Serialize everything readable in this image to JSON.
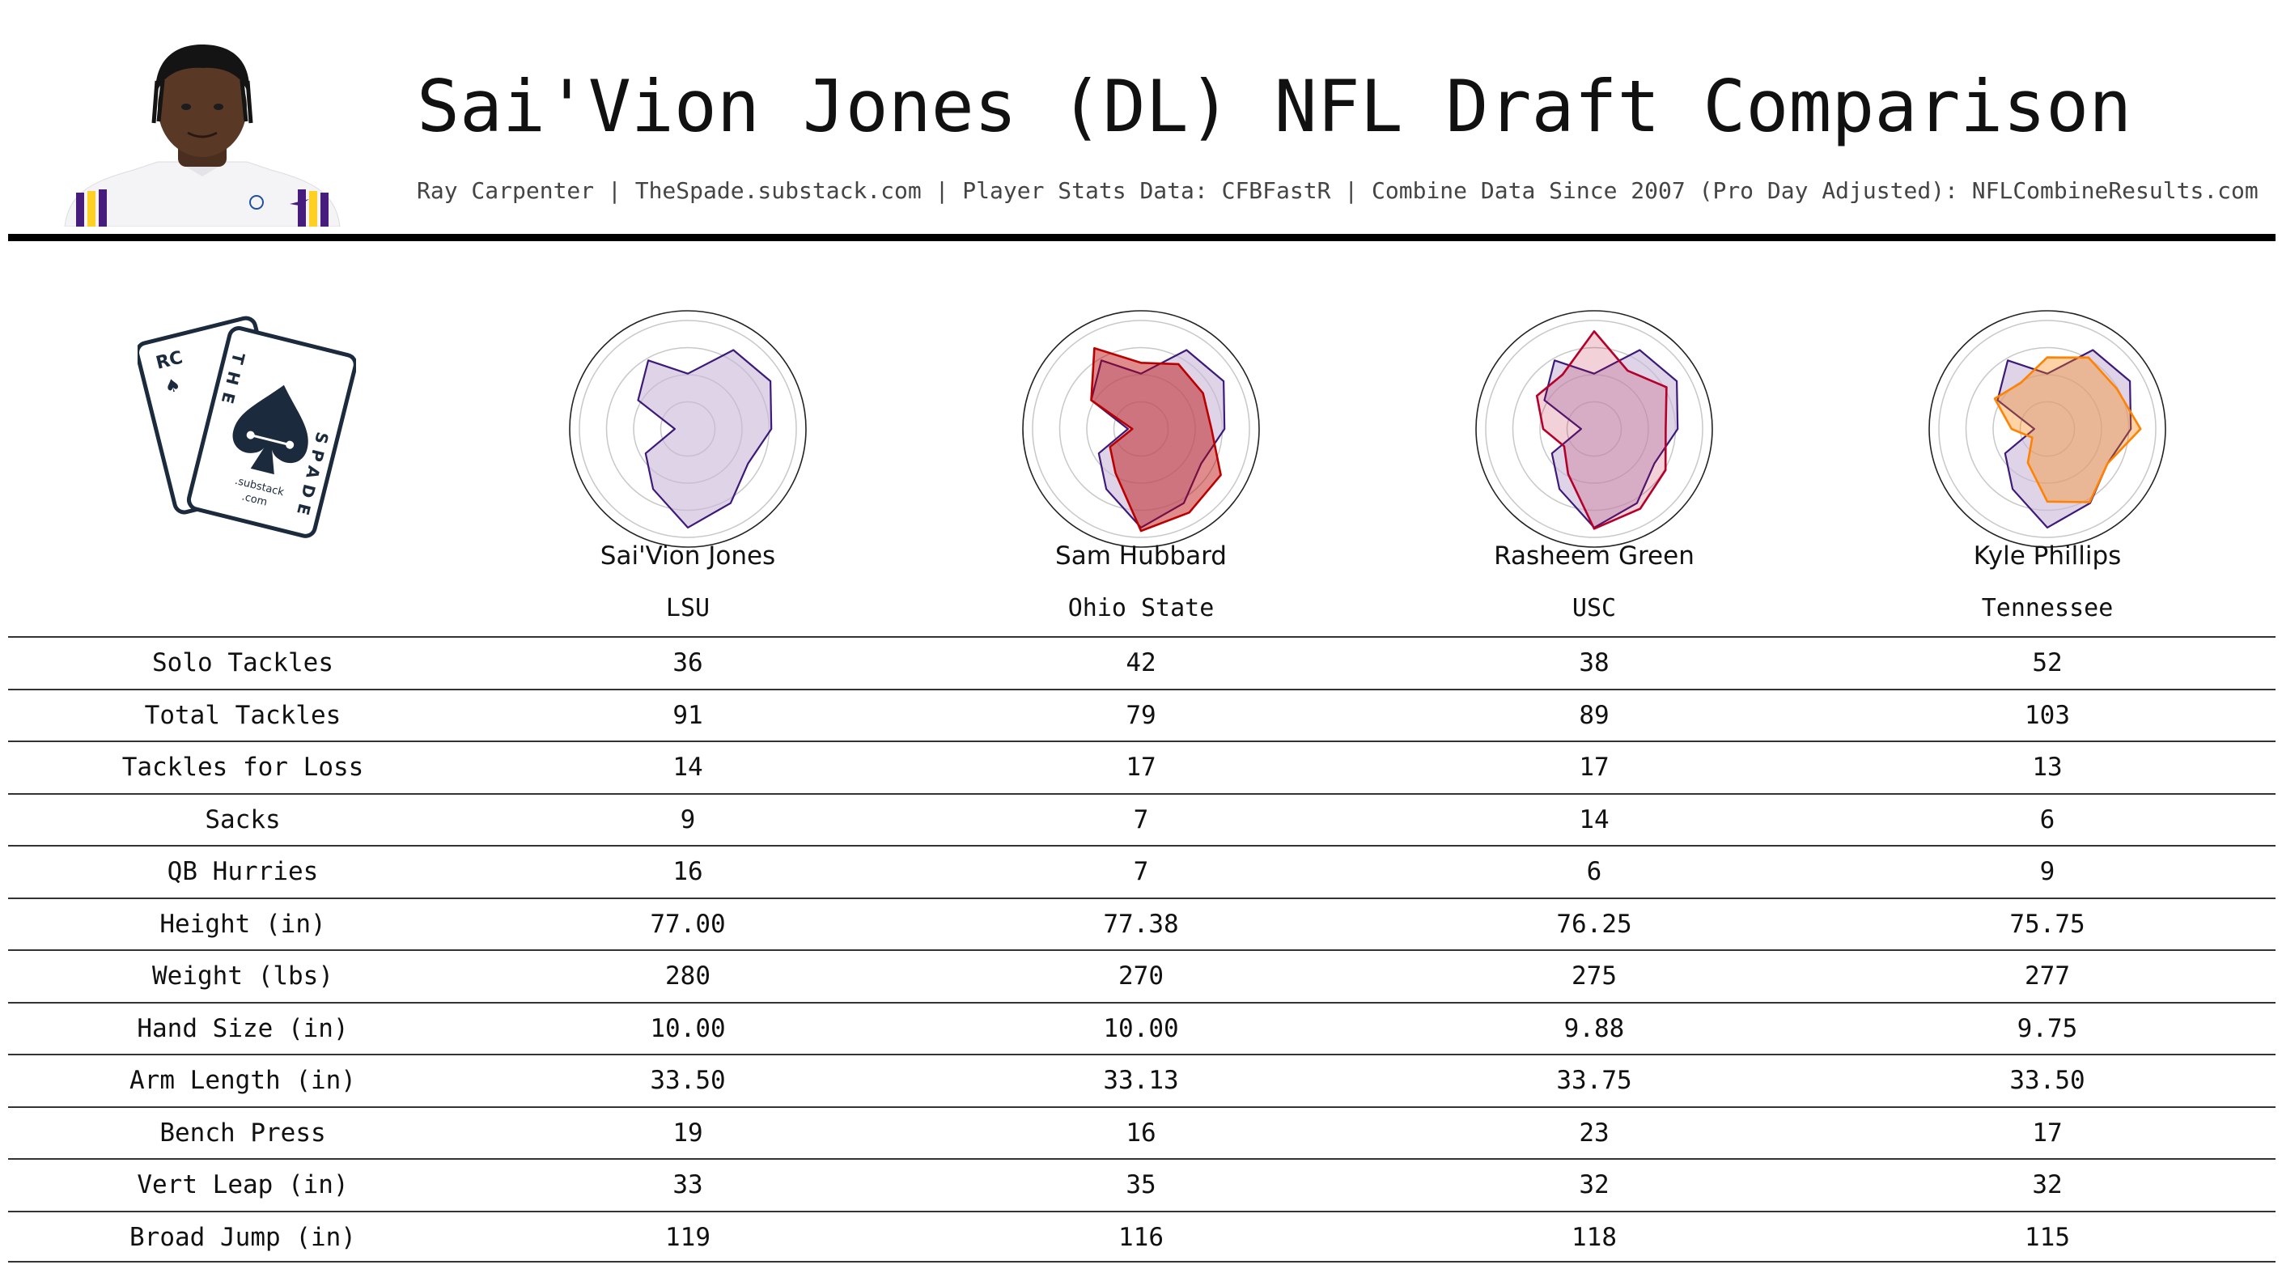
{
  "header": {
    "title": "Sai'Vion Jones (DL) NFL Draft Comparison",
    "subtitle": "Ray Carpenter | TheSpade.substack.com | Player Stats Data: CFBFastR | Combine Data Since 2007 (Pro Day Adjusted): NFLCombineResults.com"
  },
  "logo": {
    "text_card_back": "RC",
    "text_the": "THE",
    "text_spade": "SPADE",
    "text_substack": ".substack",
    "text_com": ".com"
  },
  "colors": {
    "base_fill": "#c9b8d9",
    "base_line": "#3d1a78",
    "sam_hubbard": "#bb0000",
    "rasheem_green": "#b5002a",
    "kyle_phillips": "#ff8200",
    "lsu_purple": "#461d7c",
    "lsu_gold": "#fdd023"
  },
  "players": [
    {
      "name": "Sai'Vion Jones",
      "school": "LSU"
    },
    {
      "name": "Sam Hubbard",
      "school": "Ohio State"
    },
    {
      "name": "Rasheem Green",
      "school": "USC"
    },
    {
      "name": "Kyle Phillips",
      "school": "Tennessee"
    }
  ],
  "table": {
    "rows": [
      {
        "label": "Solo Tackles",
        "values": [
          "36",
          "42",
          "38",
          "52"
        ]
      },
      {
        "label": "Total Tackles",
        "values": [
          "91",
          "79",
          "89",
          "103"
        ]
      },
      {
        "label": "Tackles for Loss",
        "values": [
          "14",
          "17",
          "17",
          "13"
        ]
      },
      {
        "label": "Sacks",
        "values": [
          "9",
          "7",
          "14",
          "6"
        ]
      },
      {
        "label": "QB Hurries",
        "values": [
          "16",
          "7",
          "6",
          "9"
        ]
      },
      {
        "label": "Height (in)",
        "values": [
          "77.00",
          "77.38",
          "76.25",
          "75.75"
        ]
      },
      {
        "label": "Weight (lbs)",
        "values": [
          "280",
          "270",
          "275",
          "277"
        ]
      },
      {
        "label": "Hand Size (in)",
        "values": [
          "10.00",
          "10.00",
          "9.88",
          "9.75"
        ]
      },
      {
        "label": "Arm Length (in)",
        "values": [
          "33.50",
          "33.13",
          "33.75",
          "33.50"
        ]
      },
      {
        "label": "Bench Press",
        "values": [
          "19",
          "16",
          "23",
          "17"
        ]
      },
      {
        "label": "Vert Leap (in)",
        "values": [
          "33",
          "35",
          "32",
          "32"
        ]
      },
      {
        "label": "Broad Jump (in)",
        "values": [
          "119",
          "116",
          "118",
          "115"
        ]
      }
    ]
  },
  "chart_data": {
    "type": "radar",
    "axes_count": 12,
    "range": [
      0,
      1
    ],
    "rings": 4,
    "grid": true,
    "baseline": {
      "name": "Sai'Vion Jones",
      "values": [
        0.51,
        0.84,
        0.88,
        0.77,
        0.64,
        0.79,
        0.91,
        0.64,
        0.45,
        0.12,
        0.53,
        0.73
      ]
    },
    "series": [
      {
        "name": "Sai'Vion Jones",
        "values": [
          0.51,
          0.84,
          0.88,
          0.77,
          0.64,
          0.79,
          0.91,
          0.64,
          0.45,
          0.12,
          0.53,
          0.73
        ]
      },
      {
        "name": "Sam Hubbard",
        "values": [
          0.61,
          0.69,
          0.66,
          0.65,
          0.85,
          0.89,
          0.94,
          0.47,
          0.33,
          0.08,
          0.53,
          0.86
        ]
      },
      {
        "name": "Rasheem Green",
        "values": [
          0.9,
          0.62,
          0.77,
          0.66,
          0.76,
          0.85,
          0.92,
          0.48,
          0.32,
          0.47,
          0.61,
          0.58
        ]
      },
      {
        "name": "Kyle Phillips",
        "values": [
          0.66,
          0.76,
          0.74,
          0.86,
          0.64,
          0.78,
          0.67,
          0.36,
          0.16,
          0.33,
          0.56,
          0.49
        ]
      }
    ]
  }
}
